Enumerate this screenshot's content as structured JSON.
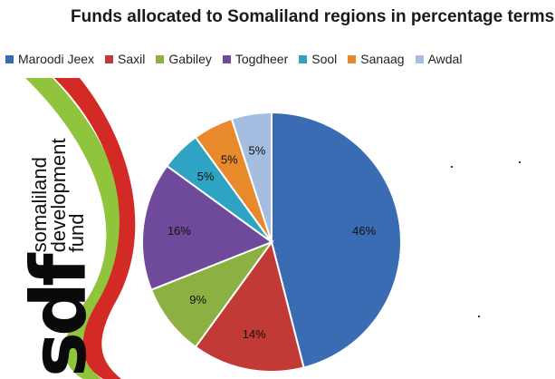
{
  "chart_data": {
    "type": "pie",
    "title": "Funds allocated to Somaliland regions in percentage terms",
    "legend_position": "top",
    "series": [
      {
        "name": "Maroodi Jeex",
        "value": 46,
        "label": "46%",
        "color": "#3a6cb4"
      },
      {
        "name": "Saxil",
        "value": 14,
        "label": "14%",
        "color": "#c23a35"
      },
      {
        "name": "Gabiley",
        "value": 9,
        "label": "9%",
        "color": "#8db043"
      },
      {
        "name": "Togdheer",
        "value": 16,
        "label": "16%",
        "color": "#6f4a9a"
      },
      {
        "name": "Sool",
        "value": 5,
        "label": "5%",
        "color": "#2ea3c4"
      },
      {
        "name": "Sanaag",
        "value": 5,
        "label": "5%",
        "color": "#e8892c"
      },
      {
        "name": "Awdal",
        "value": 5,
        "label": "5%",
        "color": "#a4bde0"
      }
    ]
  },
  "logo": {
    "letters": "sdf",
    "line1": "somaliland",
    "line2": "development",
    "line3": "fund"
  }
}
